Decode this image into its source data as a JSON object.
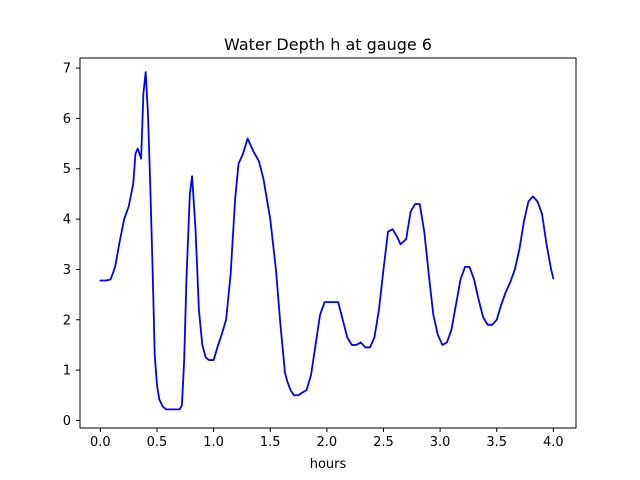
{
  "chart_data": {
    "type": "line",
    "title": "Water Depth h at gauge 6",
    "xlabel": "hours",
    "ylabel": "",
    "xlim": [
      -0.18,
      4.2
    ],
    "ylim": [
      -0.15,
      7.2
    ],
    "xticks": [
      0.0,
      0.5,
      1.0,
      1.5,
      2.0,
      2.5,
      3.0,
      3.5,
      4.0
    ],
    "xtick_labels": [
      "0.0",
      "0.5",
      "1.0",
      "1.5",
      "2.0",
      "2.5",
      "3.0",
      "3.5",
      "4.0"
    ],
    "yticks": [
      0,
      1,
      2,
      3,
      4,
      5,
      6,
      7
    ],
    "ytick_labels": [
      "0",
      "1",
      "2",
      "3",
      "4",
      "5",
      "6",
      "7"
    ],
    "grid": false,
    "line_color": "#0000ff",
    "series": [
      {
        "x": [
          0.0,
          0.05,
          0.09,
          0.13,
          0.17,
          0.21,
          0.25,
          0.29,
          0.31,
          0.33,
          0.36,
          0.38,
          0.4,
          0.42,
          0.44,
          0.46,
          0.48,
          0.5,
          0.52,
          0.55,
          0.58,
          0.62,
          0.66,
          0.7,
          0.72,
          0.74,
          0.76,
          0.79,
          0.81,
          0.84,
          0.87,
          0.9,
          0.93,
          0.96,
          1.0,
          1.04,
          1.07,
          1.11,
          1.15,
          1.19,
          1.22,
          1.26,
          1.3,
          1.35,
          1.4,
          1.44,
          1.47,
          1.5,
          1.55,
          1.59,
          1.63,
          1.65,
          1.68,
          1.71,
          1.75,
          1.78,
          1.82,
          1.86,
          1.9,
          1.94,
          1.98,
          2.02,
          2.06,
          2.1,
          2.14,
          2.18,
          2.22,
          2.26,
          2.3,
          2.34,
          2.38,
          2.42,
          2.46,
          2.5,
          2.54,
          2.58,
          2.62,
          2.65,
          2.7,
          2.74,
          2.78,
          2.82,
          2.86,
          2.9,
          2.94,
          2.98,
          3.02,
          3.06,
          3.1,
          3.14,
          3.18,
          3.22,
          3.26,
          3.3,
          3.34,
          3.38,
          3.42,
          3.46,
          3.5,
          3.54,
          3.58,
          3.62,
          3.66,
          3.7,
          3.74,
          3.78,
          3.82,
          3.86,
          3.9,
          3.94,
          3.98,
          4.0
        ],
        "y": [
          2.78,
          2.78,
          2.8,
          3.05,
          3.55,
          4.0,
          4.25,
          4.7,
          5.3,
          5.4,
          5.2,
          6.5,
          6.92,
          6.1,
          4.7,
          3.1,
          1.3,
          0.7,
          0.42,
          0.28,
          0.22,
          0.22,
          0.22,
          0.22,
          0.3,
          1.2,
          2.8,
          4.5,
          4.85,
          3.8,
          2.2,
          1.5,
          1.25,
          1.2,
          1.2,
          1.5,
          1.7,
          2.0,
          2.9,
          4.4,
          5.1,
          5.3,
          5.6,
          5.35,
          5.15,
          4.8,
          4.4,
          4.0,
          3.0,
          1.9,
          0.95,
          0.78,
          0.6,
          0.5,
          0.5,
          0.55,
          0.6,
          0.9,
          1.5,
          2.1,
          2.35,
          2.35,
          2.35,
          2.35,
          2.0,
          1.65,
          1.5,
          1.5,
          1.55,
          1.45,
          1.45,
          1.65,
          2.2,
          3.0,
          3.75,
          3.8,
          3.65,
          3.5,
          3.6,
          4.15,
          4.3,
          4.3,
          3.75,
          2.9,
          2.1,
          1.7,
          1.5,
          1.55,
          1.8,
          2.3,
          2.8,
          3.05,
          3.05,
          2.8,
          2.4,
          2.05,
          1.9,
          1.9,
          2.0,
          2.3,
          2.55,
          2.75,
          3.0,
          3.4,
          3.95,
          4.35,
          4.45,
          4.35,
          4.1,
          3.5,
          3.0,
          2.82
        ]
      }
    ]
  }
}
